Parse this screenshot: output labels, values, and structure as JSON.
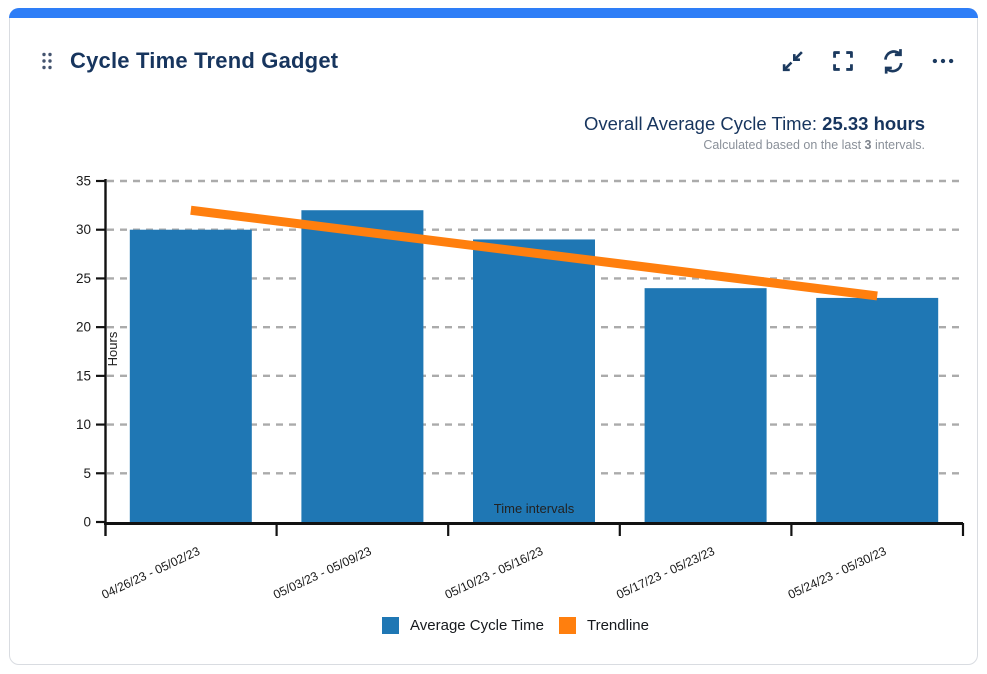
{
  "card": {
    "title": "Cycle Time Trend Gadget",
    "accent_color": "#2E7EF7",
    "toolbar": {
      "icons": [
        {
          "name": "minimize"
        },
        {
          "name": "fullscreen"
        },
        {
          "name": "refresh"
        },
        {
          "name": "more"
        }
      ],
      "icon_color": "#1C3A5F"
    }
  },
  "overview": {
    "label": "Overall Average Cycle Time: ",
    "value": "25.33 hours",
    "note_prefix": "Calculated based on the last ",
    "note_bold": "3",
    "note_suffix": " intervals."
  },
  "chart_data": {
    "type": "bar",
    "title": "",
    "categories": [
      "04/26/23 - 05/02/23",
      "05/03/23 - 05/09/23",
      "05/10/23 - 05/16/23",
      "05/17/23 - 05/23/23",
      "05/24/23 - 05/30/23"
    ],
    "series": [
      {
        "name": "Average Cycle Time",
        "type": "bar",
        "color": "#1F77B4",
        "values": [
          30,
          32,
          29,
          24,
          23
        ]
      },
      {
        "name": "Trendline",
        "type": "line",
        "color": "#FF7F0E",
        "values": [
          32.0,
          29.8,
          27.6,
          25.4,
          23.2
        ]
      }
    ],
    "xlabel": "Time intervals",
    "ylabel": "Hours",
    "ylim": [
      0,
      35
    ],
    "yticks": [
      0,
      5,
      10,
      15,
      20,
      25,
      30,
      35
    ],
    "grid": "horizontal-dashed",
    "legend_position": "bottom"
  }
}
